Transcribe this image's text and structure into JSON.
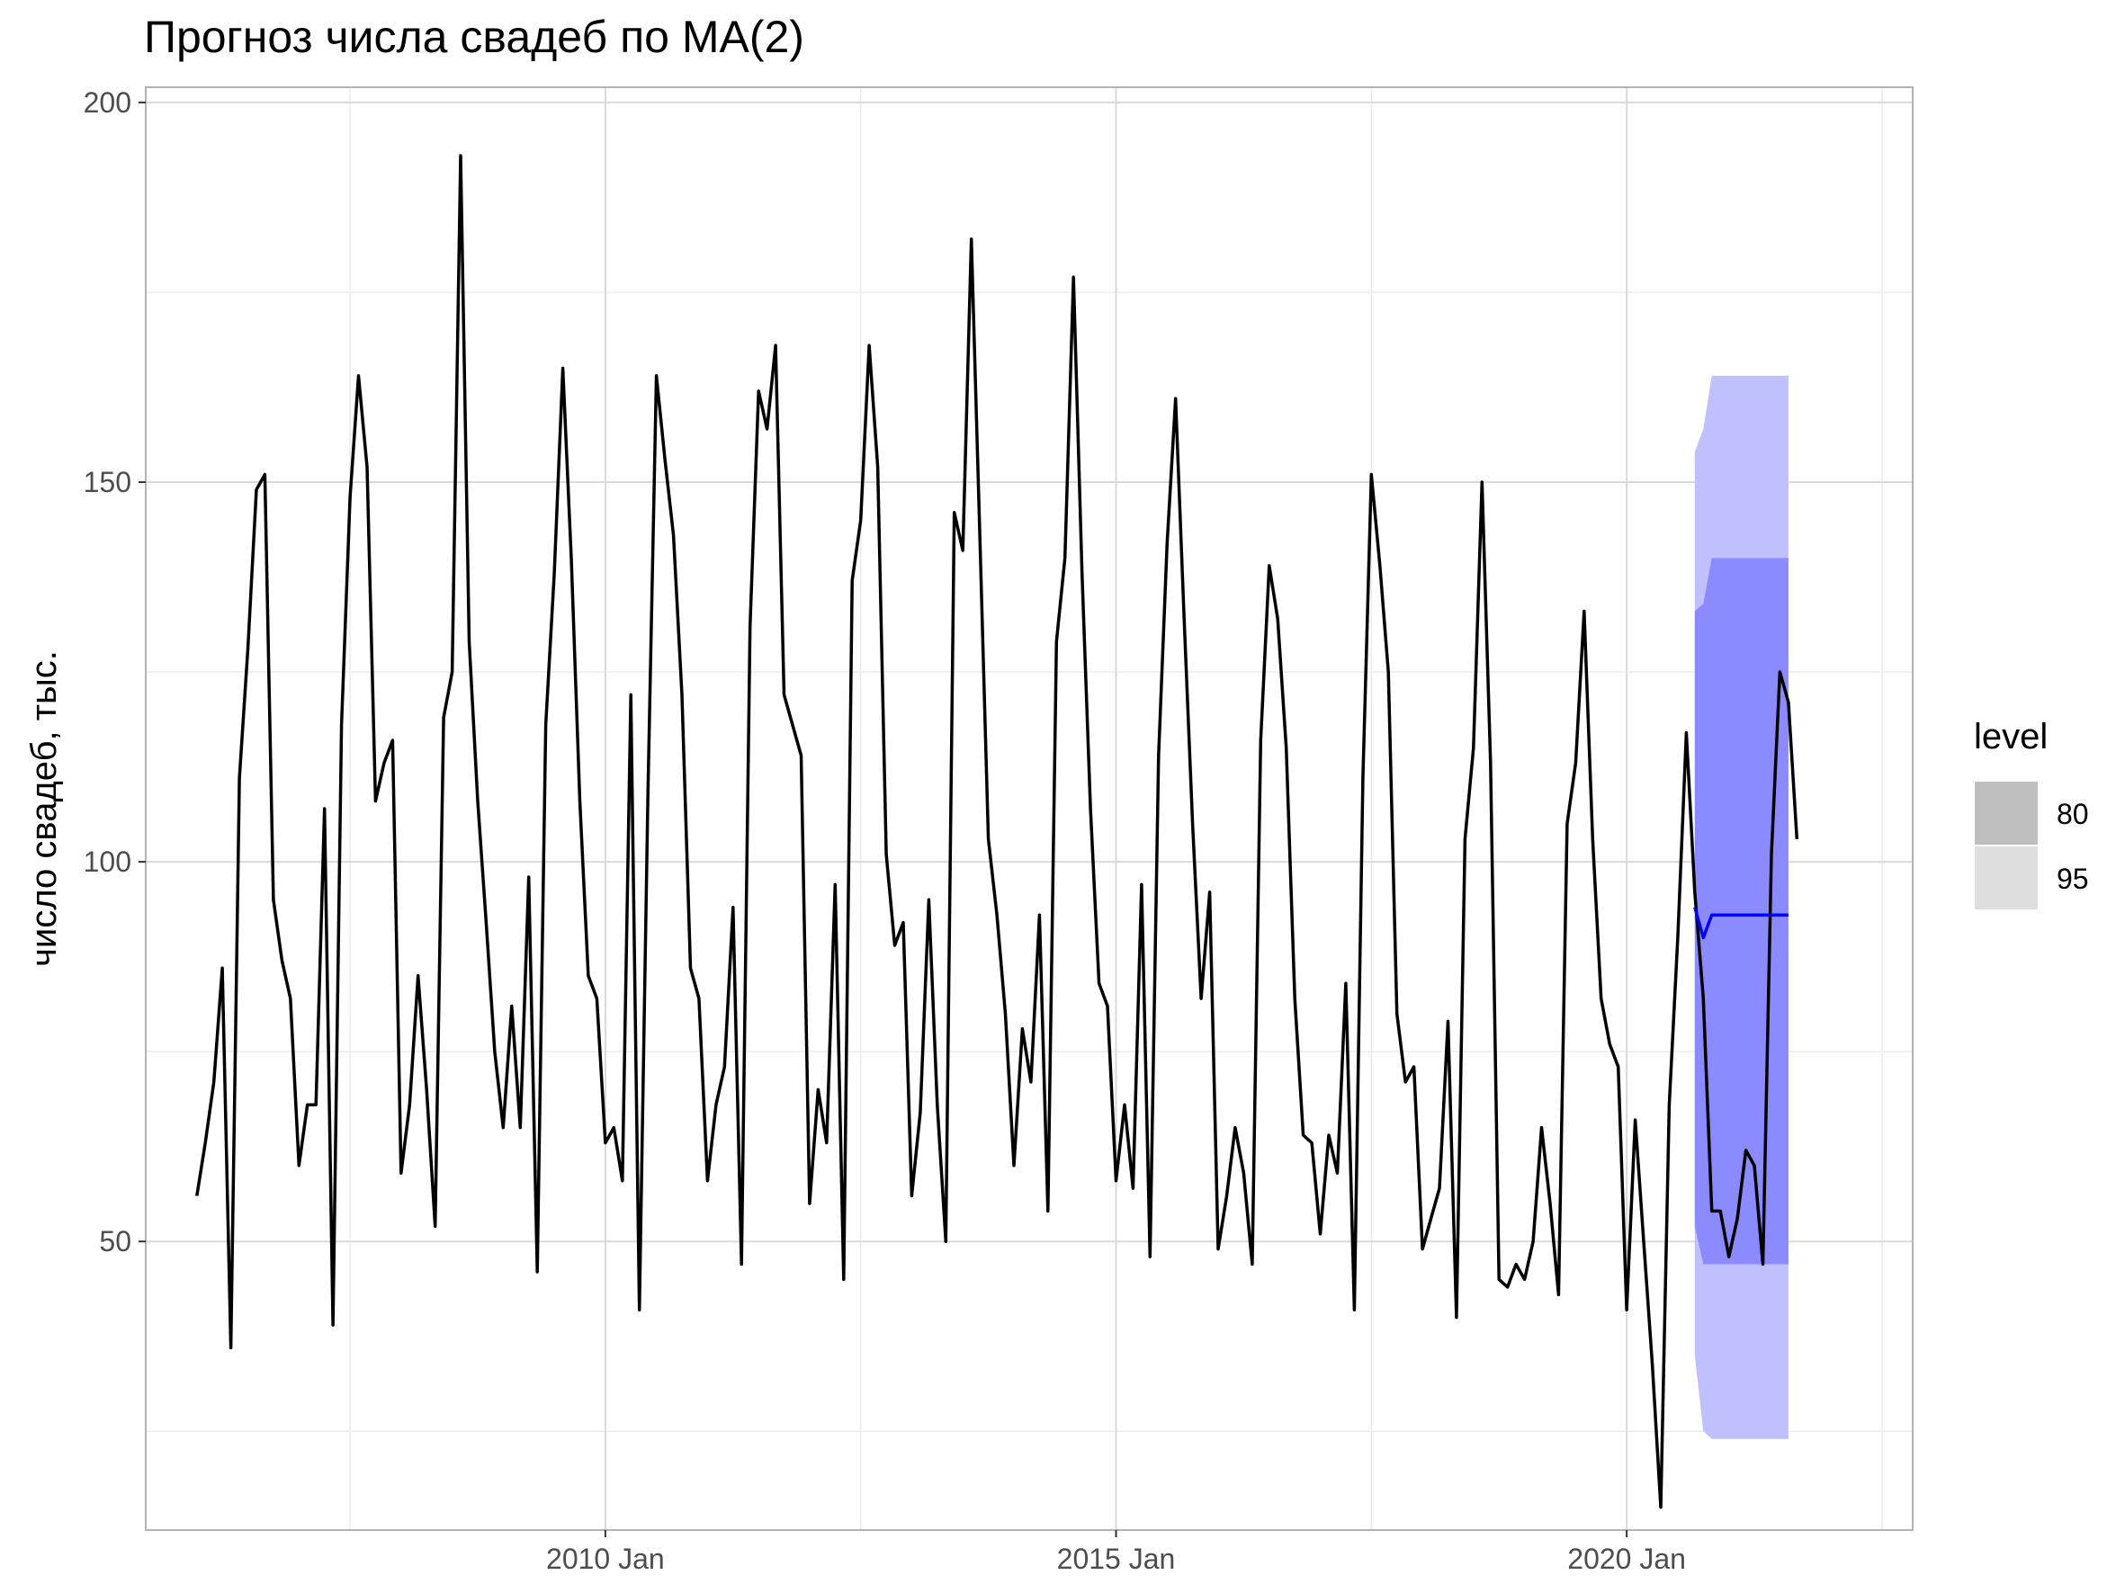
{
  "chart_data": {
    "type": "line",
    "title": "Прогноз числа свадеб по MA(2)",
    "xlabel": "",
    "ylabel": "число свадеб, тыс.",
    "xlim": [
      2005.5,
      2022.8
    ],
    "ylim": [
      12,
      202
    ],
    "x_ticks": [
      {
        "value": 2010.0,
        "label": "2010 Jan"
      },
      {
        "value": 2015.0,
        "label": "2015 Jan"
      },
      {
        "value": 2020.0,
        "label": "2020 Jan"
      }
    ],
    "y_ticks": [
      {
        "value": 50,
        "label": "50"
      },
      {
        "value": 100,
        "label": "100"
      },
      {
        "value": 150,
        "label": "150"
      },
      {
        "value": 200,
        "label": "200"
      }
    ],
    "grid": true,
    "legend": {
      "title": "level",
      "position": "right",
      "entries": [
        {
          "label": "80",
          "color": "#bebebe"
        },
        {
          "label": "95",
          "color": "#dedede"
        }
      ]
    },
    "colors": {
      "observed": "#000000",
      "forecast": "#0000ff",
      "band80": "#8b8bff",
      "band95": "#c0c0ff",
      "panel_border": "#b3b3b3",
      "grid_major": "#d9d9d9",
      "grid_minor": "#ebebeb"
    },
    "series": [
      {
        "start_year": 2006,
        "start_month": 1,
        "values": [
          56,
          63,
          71,
          86,
          36,
          111,
          128,
          149,
          151,
          95,
          87,
          82,
          60,
          68,
          68,
          107,
          39,
          118,
          148,
          164,
          152,
          108,
          113,
          116,
          59,
          68,
          85,
          70,
          52,
          119,
          125,
          193,
          129,
          108,
          92,
          75,
          65,
          81,
          65,
          98,
          46,
          118,
          138,
          165,
          140,
          108,
          85,
          82,
          63,
          65,
          58,
          122,
          41,
          109,
          164,
          153,
          143,
          122,
          86,
          82,
          58,
          68,
          73,
          94,
          47,
          131,
          162,
          157,
          168,
          122,
          118,
          114,
          55,
          70,
          63,
          97,
          45,
          137,
          145,
          168,
          152,
          101,
          89,
          92,
          56,
          67,
          95,
          68,
          50,
          146,
          141,
          182,
          143,
          103,
          93,
          80,
          60,
          78,
          71,
          93,
          54,
          129,
          140,
          177,
          138,
          107,
          84,
          81,
          58,
          68,
          57,
          97,
          48,
          114,
          142,
          161,
          132,
          105,
          82,
          96,
          49,
          56,
          65,
          59,
          47,
          116,
          139,
          132,
          115,
          82,
          64,
          63,
          51,
          64,
          59,
          84,
          41,
          111,
          151,
          139,
          125,
          80,
          71,
          73,
          49,
          53,
          57,
          79,
          40,
          103,
          115,
          150,
          113,
          45,
          44,
          47,
          45,
          50,
          65,
          55,
          43,
          105,
          113,
          133,
          103,
          82,
          76,
          73,
          41,
          66,
          50,
          34,
          15,
          68,
          90,
          117,
          96,
          82,
          54,
          54,
          48,
          53,
          62,
          60,
          47,
          101,
          125,
          121,
          103
        ]
      }
    ],
    "forecast": {
      "start_year": 2020,
      "start_month": 9,
      "mean": [
        94,
        90,
        93,
        93,
        93,
        93,
        93,
        93,
        93,
        93,
        93,
        93
      ],
      "lo80": [
        52,
        47,
        47,
        47,
        47,
        47,
        47,
        47,
        47,
        47,
        47,
        47
      ],
      "hi80": [
        133,
        134,
        140,
        140,
        140,
        140,
        140,
        140,
        140,
        140,
        140,
        140
      ],
      "lo95": [
        35,
        25,
        24,
        24,
        24,
        24,
        24,
        24,
        24,
        24,
        24,
        24
      ],
      "hi95": [
        154,
        157,
        164,
        164,
        164,
        164,
        164,
        164,
        164,
        164,
        164,
        164
      ]
    }
  }
}
